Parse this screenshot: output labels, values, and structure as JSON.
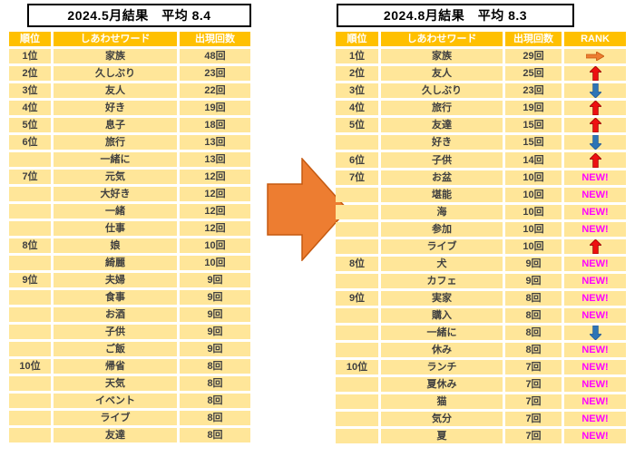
{
  "colors": {
    "header_bg": "#FFC000",
    "cell_bg": "#FFE699",
    "cell_text": "#404040",
    "up_arrow": "#EE1111",
    "up_arrow_outline": "#990000",
    "down_arrow": "#2E75B6",
    "down_arrow_outline": "#1F5596",
    "same_arrow": "#ED7D31",
    "same_arrow_outline": "#C55A11",
    "new_text": "#FF00FF",
    "transition_arrow": "#ED7D31"
  },
  "new_label": "NEW!",
  "left_table": {
    "title": "2024.5月結果　平均 8.4",
    "columns": [
      "順位",
      "しあわせワード",
      "出現回数"
    ],
    "rows": [
      {
        "rank": "1位",
        "word": "家族",
        "count": "48回"
      },
      {
        "rank": "2位",
        "word": "久しぶり",
        "count": "23回"
      },
      {
        "rank": "3位",
        "word": "友人",
        "count": "22回"
      },
      {
        "rank": "4位",
        "word": "好き",
        "count": "19回"
      },
      {
        "rank": "5位",
        "word": "息子",
        "count": "18回"
      },
      {
        "rank": "6位",
        "word": "旅行",
        "count": "13回"
      },
      {
        "rank": "",
        "word": "一緒に",
        "count": "13回"
      },
      {
        "rank": "7位",
        "word": "元気",
        "count": "12回"
      },
      {
        "rank": "",
        "word": "大好き",
        "count": "12回"
      },
      {
        "rank": "",
        "word": "一緒",
        "count": "12回"
      },
      {
        "rank": "",
        "word": "仕事",
        "count": "12回"
      },
      {
        "rank": "8位",
        "word": "娘",
        "count": "10回"
      },
      {
        "rank": "",
        "word": "綺麗",
        "count": "10回"
      },
      {
        "rank": "9位",
        "word": "夫婦",
        "count": "9回"
      },
      {
        "rank": "",
        "word": "食事",
        "count": "9回"
      },
      {
        "rank": "",
        "word": "お酒",
        "count": "9回"
      },
      {
        "rank": "",
        "word": "子供",
        "count": "9回"
      },
      {
        "rank": "",
        "word": "ご飯",
        "count": "9回"
      },
      {
        "rank": "10位",
        "word": "帰省",
        "count": "8回"
      },
      {
        "rank": "",
        "word": "天気",
        "count": "8回"
      },
      {
        "rank": "",
        "word": "イベント",
        "count": "8回"
      },
      {
        "rank": "",
        "word": "ライブ",
        "count": "8回"
      },
      {
        "rank": "",
        "word": "友達",
        "count": "8回"
      }
    ]
  },
  "right_table": {
    "title": "2024.8月結果　平均 8.3",
    "columns": [
      "順位",
      "しあわせワード",
      "出現回数",
      "RANK"
    ],
    "rows": [
      {
        "rank": "1位",
        "word": "家族",
        "count": "29回",
        "change": "same"
      },
      {
        "rank": "2位",
        "word": "友人",
        "count": "25回",
        "change": "up"
      },
      {
        "rank": "3位",
        "word": "久しぶり",
        "count": "23回",
        "change": "down"
      },
      {
        "rank": "4位",
        "word": "旅行",
        "count": "19回",
        "change": "up"
      },
      {
        "rank": "5位",
        "word": "友達",
        "count": "15回",
        "change": "up"
      },
      {
        "rank": "",
        "word": "好き",
        "count": "15回",
        "change": "down"
      },
      {
        "rank": "6位",
        "word": "子供",
        "count": "14回",
        "change": "up"
      },
      {
        "rank": "7位",
        "word": "お盆",
        "count": "10回",
        "change": "new"
      },
      {
        "rank": "",
        "word": "堪能",
        "count": "10回",
        "change": "new"
      },
      {
        "rank": "",
        "word": "海",
        "count": "10回",
        "change": "new"
      },
      {
        "rank": "",
        "word": "参加",
        "count": "10回",
        "change": "new"
      },
      {
        "rank": "",
        "word": "ライブ",
        "count": "10回",
        "change": "up"
      },
      {
        "rank": "8位",
        "word": "犬",
        "count": "9回",
        "change": "new"
      },
      {
        "rank": "",
        "word": "カフェ",
        "count": "9回",
        "change": "new"
      },
      {
        "rank": "9位",
        "word": "実家",
        "count": "8回",
        "change": "new"
      },
      {
        "rank": "",
        "word": "購入",
        "count": "8回",
        "change": "new"
      },
      {
        "rank": "",
        "word": "一緒に",
        "count": "8回",
        "change": "down"
      },
      {
        "rank": "",
        "word": "休み",
        "count": "8回",
        "change": "new"
      },
      {
        "rank": "10位",
        "word": "ランチ",
        "count": "7回",
        "change": "new"
      },
      {
        "rank": "",
        "word": "夏休み",
        "count": "7回",
        "change": "new"
      },
      {
        "rank": "",
        "word": "猫",
        "count": "7回",
        "change": "new"
      },
      {
        "rank": "",
        "word": "気分",
        "count": "7回",
        "change": "new"
      },
      {
        "rank": "",
        "word": "夏",
        "count": "7回",
        "change": "new"
      }
    ]
  }
}
